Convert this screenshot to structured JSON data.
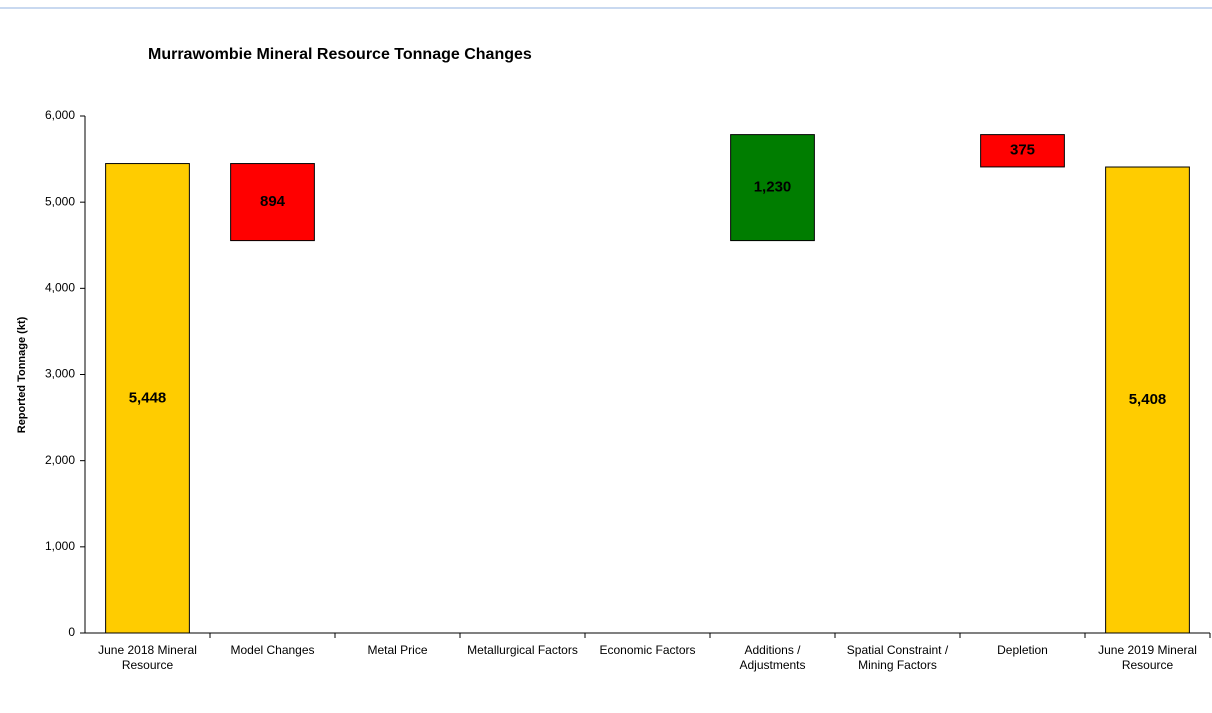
{
  "chart_data": {
    "type": "waterfall",
    "title": "Murrawombie Mineral Resource Tonnage Changes",
    "y_label": "Reported Tonnage (kt)",
    "categories": [
      "June 2018 Mineral Resource",
      "Model Changes",
      "Metal Price",
      "Metallurgical Factors",
      "Economic Factors",
      "Additions / Adjustments",
      "Spatial Constraint / Mining Factors",
      "Depletion",
      "June 2019 Mineral Resource"
    ],
    "measure": [
      "absolute",
      "relative",
      "relative",
      "relative",
      "relative",
      "relative",
      "relative",
      "relative",
      "absolute"
    ],
    "values": [
      5448,
      -894,
      0,
      0,
      0,
      1230,
      0,
      -375,
      5408
    ],
    "value_labels": [
      "5,448",
      "894",
      null,
      null,
      null,
      "1,230",
      null,
      "375",
      "5,408"
    ],
    "colors": {
      "total": "#ffcc00",
      "increase": "#007d00",
      "decrease": "#ff0000"
    },
    "ylim": [
      0,
      6000
    ],
    "yticks": [
      0,
      {
        "value": 1000,
        "label": "1,000"
      },
      {
        "value": 2000,
        "label": "2,000"
      },
      {
        "value": 3000,
        "label": "3,000"
      },
      {
        "value": 4000,
        "label": "4,000"
      },
      {
        "value": 5000,
        "label": "5,000"
      },
      {
        "value": 6000,
        "label": "6,000"
      }
    ],
    "grid": false
  }
}
